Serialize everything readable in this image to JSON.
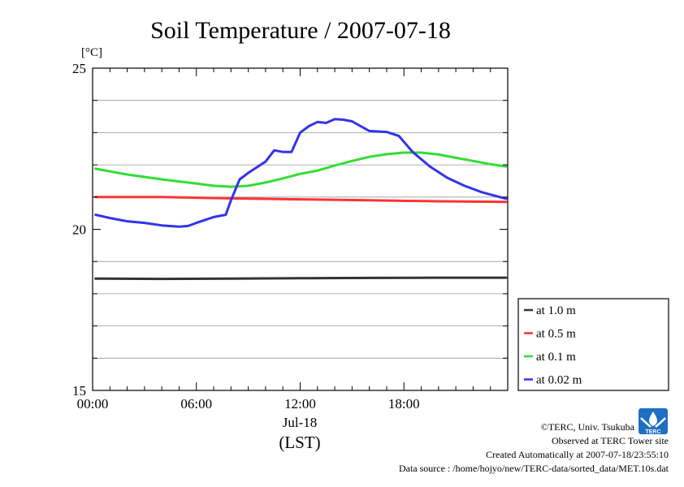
{
  "chart_data": {
    "type": "line",
    "title": "Soil Temperature / 2007-07-18",
    "ylabel": "[°C]",
    "xlabel": "(LST)",
    "x_date_label": "Jul-18",
    "xlim": [
      0,
      24
    ],
    "ylim": [
      15,
      25
    ],
    "x_ticks": [
      {
        "value": 0,
        "label": "00:00"
      },
      {
        "value": 6,
        "label": "06:00"
      },
      {
        "value": 12,
        "label": "12:00"
      },
      {
        "value": 18,
        "label": "18:00"
      }
    ],
    "y_ticks": [
      {
        "value": 15,
        "label": "15"
      },
      {
        "value": 20,
        "label": "20"
      },
      {
        "value": 25,
        "label": "25"
      }
    ],
    "y_gridlines": [
      16,
      17,
      18,
      19,
      21,
      22,
      23,
      24
    ],
    "legend_placement": "bottom-right, outside plot",
    "series": [
      {
        "name": "at 1.0 m",
        "color": "#333333",
        "x": [
          0.17,
          4,
          8,
          12,
          16,
          20,
          23.9
        ],
        "y": [
          18.47,
          18.46,
          18.47,
          18.48,
          18.49,
          18.5,
          18.5
        ]
      },
      {
        "name": "at 0.5 m",
        "color": "#ff3333",
        "x": [
          0.17,
          4,
          8,
          12,
          16,
          20,
          23.9
        ],
        "y": [
          21.0,
          21.0,
          20.96,
          20.93,
          20.9,
          20.87,
          20.85
        ]
      },
      {
        "name": "at 0.1 m",
        "color": "#33dd33",
        "x": [
          0.17,
          2,
          4,
          6,
          7,
          8,
          9,
          10,
          11,
          12,
          13,
          14,
          15,
          16,
          17,
          18,
          19,
          20,
          21,
          22,
          23,
          23.9
        ],
        "y": [
          21.88,
          21.7,
          21.55,
          21.42,
          21.35,
          21.32,
          21.35,
          21.45,
          21.58,
          21.72,
          21.82,
          21.98,
          22.12,
          22.25,
          22.33,
          22.38,
          22.38,
          22.32,
          22.22,
          22.12,
          22.02,
          21.95
        ]
      },
      {
        "name": "at 0.02 m",
        "color": "#3333ee",
        "x": [
          0.17,
          1,
          2,
          3,
          4,
          5,
          5.5,
          6,
          7,
          7.7,
          8,
          8.5,
          9,
          10,
          10.5,
          11,
          11.5,
          12,
          12.5,
          13,
          13.5,
          14,
          14.5,
          15,
          16,
          17,
          17.7,
          18.5,
          19.5,
          20.5,
          21.5,
          22.5,
          23.9
        ],
        "y": [
          20.45,
          20.35,
          20.25,
          20.2,
          20.12,
          20.08,
          20.1,
          20.2,
          20.38,
          20.45,
          20.9,
          21.55,
          21.75,
          22.1,
          22.45,
          22.4,
          22.4,
          23.0,
          23.2,
          23.33,
          23.3,
          23.42,
          23.4,
          23.35,
          23.05,
          23.02,
          22.9,
          22.4,
          21.95,
          21.6,
          21.35,
          21.15,
          20.95
        ]
      }
    ]
  },
  "credits": {
    "line1": "©TERC, Univ. Tsukuba",
    "line2": "Observed at TERC Tower site",
    "line3": "Created Automatically at 2007-07-18/23:55:10",
    "line4": "Data source : /home/hojyo/new/TERC-data/sorted_data/MET.10s.dat"
  },
  "logo": {
    "text": "TERC",
    "color": "#1e6fc4",
    "icon": "terc-wave-logo-icon"
  }
}
